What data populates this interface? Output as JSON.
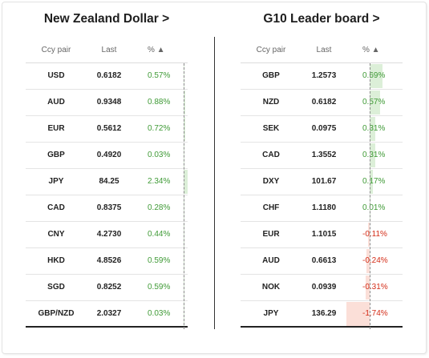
{
  "left_panel": {
    "title": "New Zealand Dollar >",
    "headers": {
      "pair": "Ccy pair",
      "last": "Last",
      "pct": "% ▲"
    },
    "rows": [
      {
        "pair": "USD",
        "last": "0.6182",
        "pct": "0.57%",
        "change": 0.57
      },
      {
        "pair": "AUD",
        "last": "0.9348",
        "pct": "0.88%",
        "change": 0.88
      },
      {
        "pair": "EUR",
        "last": "0.5612",
        "pct": "0.72%",
        "change": 0.72
      },
      {
        "pair": "GBP",
        "last": "0.4920",
        "pct": "0.03%",
        "change": 0.03
      },
      {
        "pair": "JPY",
        "last": "84.25",
        "pct": "2.34%",
        "change": 2.34
      },
      {
        "pair": "CAD",
        "last": "0.8375",
        "pct": "0.28%",
        "change": 0.28
      },
      {
        "pair": "CNY",
        "last": "4.2730",
        "pct": "0.44%",
        "change": 0.44
      },
      {
        "pair": "HKD",
        "last": "4.8526",
        "pct": "0.59%",
        "change": 0.59
      },
      {
        "pair": "SGD",
        "last": "0.8252",
        "pct": "0.59%",
        "change": 0.59
      },
      {
        "pair": "GBP/NZD",
        "last": "2.0327",
        "pct": "0.03%",
        "change": 0.03
      }
    ]
  },
  "right_panel": {
    "title": "G10 Leader board >",
    "headers": {
      "pair": "Ccy pair",
      "last": "Last",
      "pct": "% ▲"
    },
    "rows": [
      {
        "pair": "GBP",
        "last": "1.2573",
        "pct": "0.69%",
        "change": 0.69
      },
      {
        "pair": "NZD",
        "last": "0.6182",
        "pct": "0.57%",
        "change": 0.57
      },
      {
        "pair": "SEK",
        "last": "0.0975",
        "pct": "0.31%",
        "change": 0.31
      },
      {
        "pair": "CAD",
        "last": "1.3552",
        "pct": "0.31%",
        "change": 0.31
      },
      {
        "pair": "DXY",
        "last": "101.67",
        "pct": "0.17%",
        "change": 0.17
      },
      {
        "pair": "CHF",
        "last": "1.1180",
        "pct": "0.01%",
        "change": 0.01
      },
      {
        "pair": "EUR",
        "last": "1.1015",
        "pct": "-0.11%",
        "change": -0.11
      },
      {
        "pair": "AUD",
        "last": "0.6613",
        "pct": "-0.24%",
        "change": -0.24
      },
      {
        "pair": "NOK",
        "last": "0.0939",
        "pct": "-0.31%",
        "change": -0.31
      },
      {
        "pair": "JPY",
        "last": "136.29",
        "pct": "-1.74%",
        "change": -1.74
      }
    ]
  },
  "colors": {
    "positive_text": "#3f9a36",
    "negative_text": "#d42d18",
    "positive_bar": "#dcefd8",
    "negative_bar": "#fbdfd8"
  }
}
